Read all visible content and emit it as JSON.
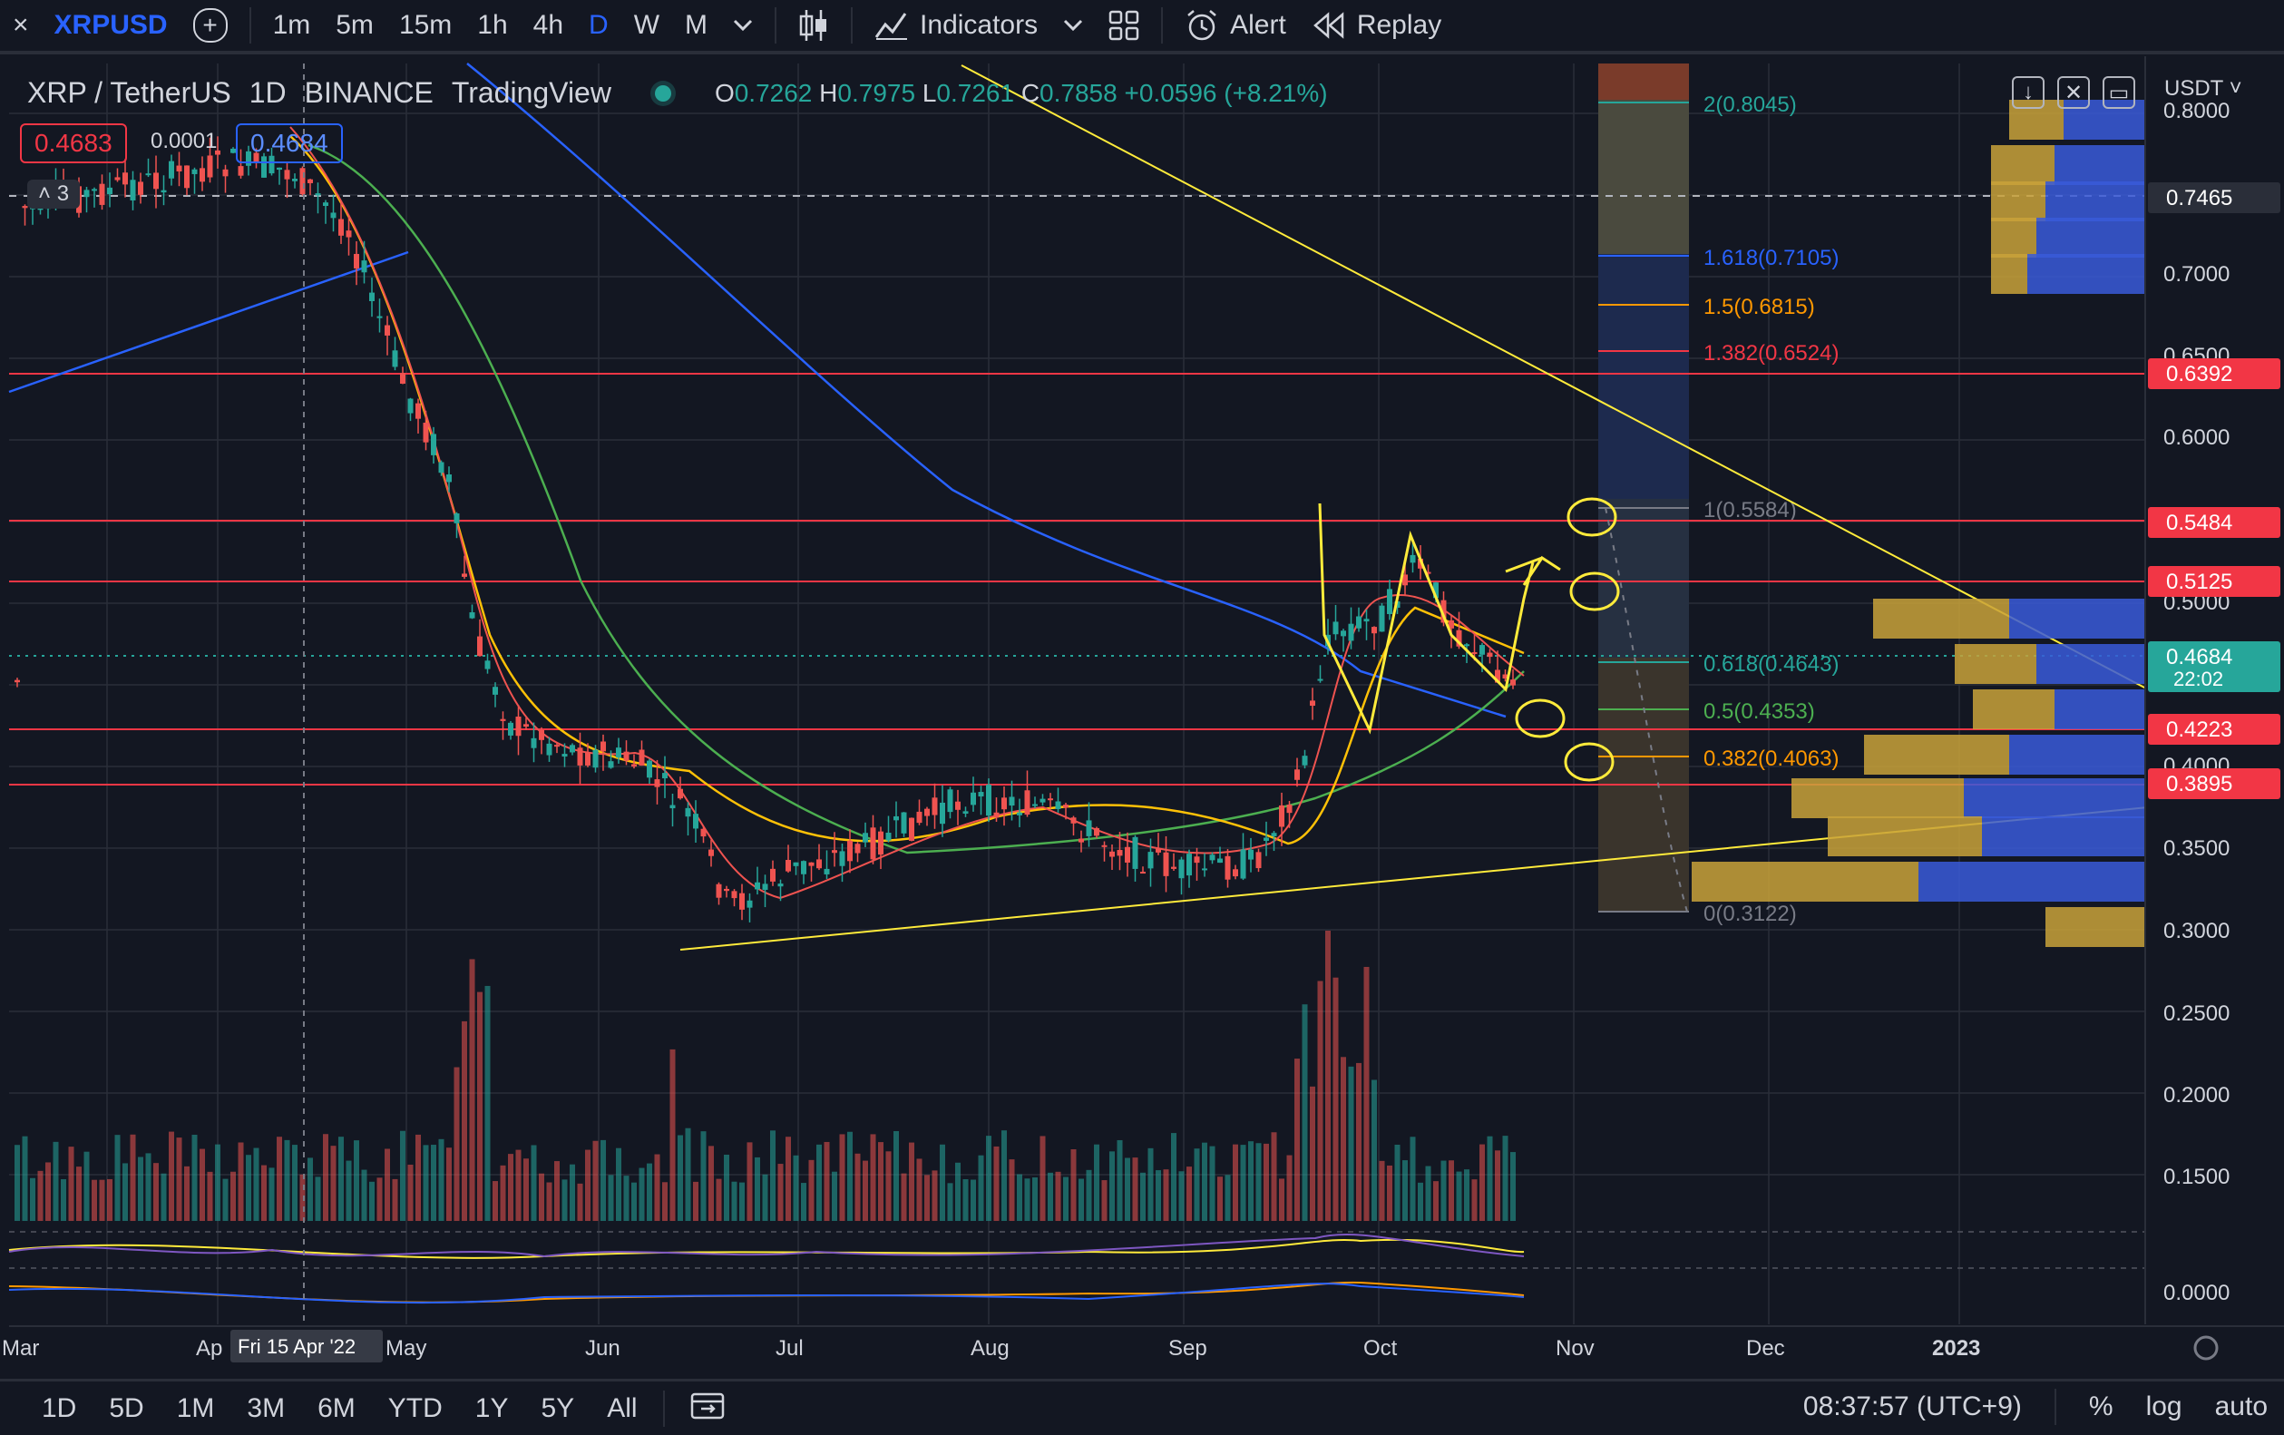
{
  "toolbar": {
    "close": "×",
    "symbol": "XRPUSD",
    "add": "+",
    "intervals": [
      "1m",
      "5m",
      "15m",
      "1h",
      "4h",
      "D",
      "W",
      "M"
    ],
    "active_interval": "D",
    "indicators": "Indicators",
    "alert": "Alert",
    "replay": "Replay"
  },
  "legend": {
    "pair": "XRP / TetherUS",
    "interval": "1D",
    "exchange": "BINANCE",
    "source": "TradingView",
    "o_label": "O",
    "o": "0.7262",
    "h_label": "H",
    "h": "0.7975",
    "l_label": "L",
    "l": "0.7261",
    "c_label": "C",
    "c": "0.7858",
    "change": "+0.0596 (+8.21%)",
    "sell": "0.4683",
    "spread": "0.0001",
    "buy": "0.4684",
    "collapse_count": "3"
  },
  "price_axis": {
    "currency": "USDT",
    "ticks": [
      "0.8000",
      "0.7000",
      "0.6500",
      "0.6000",
      "0.5000",
      "0.4000",
      "0.3500",
      "0.3000",
      "0.2500",
      "0.2000",
      "0.1500",
      "0.0000"
    ],
    "markers": [
      {
        "label": "0.7465",
        "color": "#2a2e39"
      },
      {
        "label": "0.6392",
        "color": "#f23645"
      },
      {
        "label": "0.5484",
        "color": "#f23645"
      },
      {
        "label": "0.5125",
        "color": "#f23645"
      },
      {
        "label": "0.4684",
        "sub": "22:02",
        "color": "#26a69a"
      },
      {
        "label": "0.4223",
        "color": "#f23645"
      },
      {
        "label": "0.3895",
        "color": "#f23645"
      }
    ]
  },
  "time_axis": {
    "labels": [
      "Mar",
      "Ap",
      "May",
      "Jun",
      "Jul",
      "Aug",
      "Sep",
      "Oct",
      "Nov",
      "Dec",
      "2023"
    ],
    "crosshair": "Fri 15 Apr '22"
  },
  "fib": {
    "levels": [
      {
        "label": "2(0.8045)",
        "color": "#26a69a"
      },
      {
        "label": "1.618(0.7105)",
        "color": "#2962ff"
      },
      {
        "label": "1.5(0.6815)",
        "color": "#ff9800"
      },
      {
        "label": "1.382(0.6524)",
        "color": "#f23645"
      },
      {
        "label": "1(0.5584)",
        "color": "#787b86"
      },
      {
        "label": "0.618(0.4643)",
        "color": "#26a69a"
      },
      {
        "label": "0.5(0.4353)",
        "color": "#4caf50"
      },
      {
        "label": "0.382(0.4063)",
        "color": "#ff9800"
      },
      {
        "label": "0(0.3122)",
        "color": "#787b86"
      }
    ]
  },
  "bottom": {
    "ranges": [
      "1D",
      "5D",
      "1M",
      "3M",
      "6M",
      "YTD",
      "1Y",
      "5Y",
      "All"
    ],
    "time": "08:37:57 (UTC+9)",
    "percent": "%",
    "log": "log",
    "auto": "auto"
  },
  "colors": {
    "up": "#26a69a",
    "down": "#ef5350",
    "bg": "#131722",
    "grid": "#2a2e39",
    "accent": "#2962ff"
  }
}
